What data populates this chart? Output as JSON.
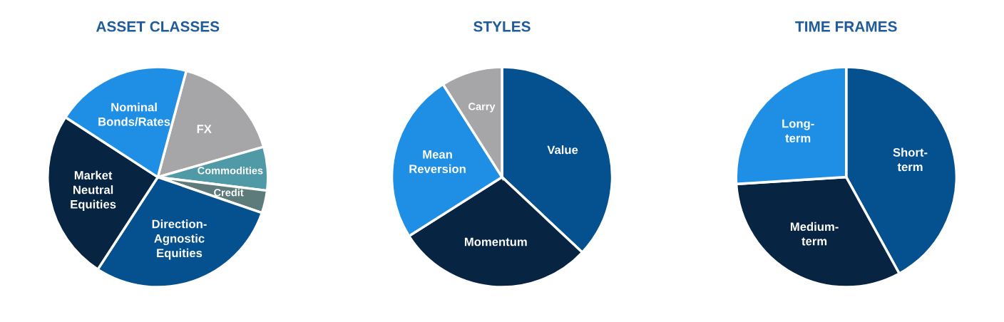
{
  "chart_data": [
    {
      "type": "pie",
      "title": "ASSET CLASSES",
      "categories": [
        "FX",
        "Commodities",
        "Credit",
        "Direction-\nAgnostic\nEquities",
        "Market\nNeutral\nEquities",
        "Nominal\nBonds/Rates"
      ],
      "values": [
        16.4,
        6.4,
        3.3,
        28.9,
        25,
        20
      ],
      "colors": [
        "#a6a6a8",
        "#4f9aa6",
        "#5e7b7b",
        "#05508f",
        "#072542",
        "#1f8fe6"
      ]
    },
    {
      "type": "pie",
      "title": "STYLES",
      "categories": [
        "Value",
        "Momentum",
        "Mean\nReversion",
        "Carry"
      ],
      "values": [
        37,
        29,
        25,
        9
      ],
      "colors": [
        "#05508f",
        "#072542",
        "#1f8fe6",
        "#a6a6a8"
      ]
    },
    {
      "type": "pie",
      "title": "TIME FRAMES",
      "categories": [
        "Short-\nterm",
        "Medium-\nterm",
        "Long-\nterm"
      ],
      "values": [
        42,
        32,
        26
      ],
      "colors": [
        "#05508f",
        "#072542",
        "#1f8fe6"
      ]
    }
  ]
}
